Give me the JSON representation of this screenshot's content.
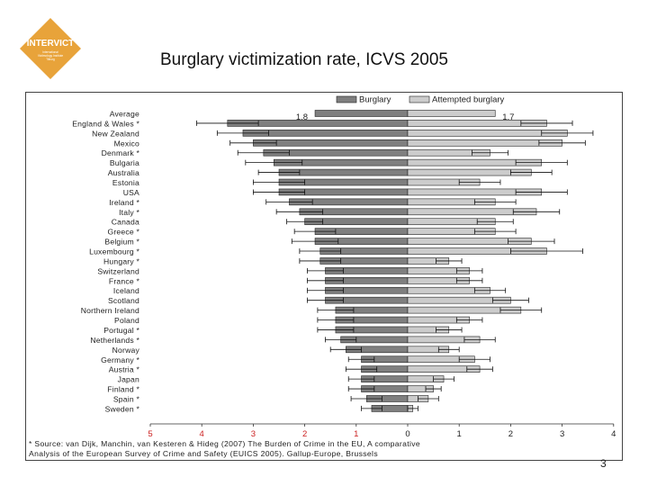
{
  "slide": {
    "title": "Burglary victimization rate, ICVS 2005",
    "page_number": "3",
    "logo_text": "INTERVICT",
    "logo_subtext": [
      "International",
      "Victimology Institute",
      "Tilburg"
    ]
  },
  "colors": {
    "logo_bg": "#e8a33a",
    "burglary_bar": "#7f7f7f",
    "attempted_bar": "#cccccc",
    "axis_red": "#cc2222",
    "frame": "#444444"
  },
  "chart_data": {
    "type": "bar",
    "orientation": "horizontal-diverging",
    "legend": [
      "Burglary",
      "Attempted burglary"
    ],
    "legend_position": "top-right",
    "categories": [
      "Average",
      "England & Wales *",
      "New Zealand",
      "Mexico",
      "Denmark *",
      "Bulgaria",
      "Australia",
      "Estonia",
      "USA",
      "Ireland *",
      "Italy *",
      "Canada",
      "Greece *",
      "Belgium *",
      "Luxembourg *",
      "Hungary *",
      "Switzerland",
      "France *",
      "Iceland",
      "Scotland",
      "Northern Ireland",
      "Poland",
      "Portugal *",
      "Netherlands *",
      "Norway",
      "Germany *",
      "Austria *",
      "Japan",
      "Finland *",
      "Spain *",
      "Sweden *"
    ],
    "series": [
      {
        "name": "Burglary",
        "values": [
          1.8,
          3.5,
          3.2,
          3.0,
          2.8,
          2.6,
          2.5,
          2.5,
          2.5,
          2.3,
          2.1,
          2.0,
          1.8,
          1.8,
          1.7,
          1.7,
          1.6,
          1.6,
          1.6,
          1.6,
          1.4,
          1.4,
          1.4,
          1.3,
          1.2,
          0.9,
          0.9,
          0.9,
          0.9,
          0.8,
          0.7
        ]
      },
      {
        "name": "Attempted burglary",
        "values": [
          1.7,
          2.7,
          3.1,
          3.0,
          1.6,
          2.6,
          2.4,
          1.4,
          2.6,
          1.7,
          2.5,
          1.7,
          1.7,
          2.4,
          2.7,
          0.8,
          1.2,
          1.2,
          1.6,
          2.0,
          2.2,
          1.2,
          0.8,
          1.4,
          0.8,
          1.3,
          1.4,
          0.7,
          0.5,
          0.4,
          0.1
        ]
      }
    ],
    "errors": {
      "burglary": [
        null,
        0.6,
        0.5,
        0.45,
        0.5,
        0.55,
        0.4,
        0.5,
        0.5,
        0.45,
        0.45,
        0.35,
        0.4,
        0.45,
        0.4,
        0.4,
        0.35,
        0.35,
        0.35,
        0.35,
        0.35,
        0.35,
        0.35,
        0.3,
        0.3,
        0.25,
        0.3,
        0.25,
        0.25,
        0.3,
        0.2
      ],
      "attempted": [
        null,
        0.5,
        0.5,
        0.45,
        0.35,
        0.5,
        0.4,
        0.4,
        0.5,
        0.4,
        0.45,
        0.35,
        0.4,
        0.45,
        0.7,
        0.25,
        0.25,
        0.25,
        0.3,
        0.35,
        0.4,
        0.25,
        0.25,
        0.3,
        0.2,
        0.3,
        0.25,
        0.2,
        0.15,
        0.2,
        0.1
      ]
    },
    "average_labels": [
      "1.8",
      "1.7"
    ],
    "x_ticks": [
      "5",
      "4",
      "3",
      "2",
      "1",
      "0",
      "1",
      "2",
      "3",
      "4"
    ],
    "xlim": [
      -5,
      4
    ],
    "annotation": "* Source: van Dijk, Manchin, van Kesteren & Hideg (2007) The Burden of Crime in the EU, A comparative Analysis of the European Survey of Crime and Safety (EUICS 2005). Gallup-Europe, Brussels",
    "annotation_lines": [
      "* Source: van Dijk, Manchin, van Kesteren & Hideg (2007) The Burden of Crime in the EU, A comparative",
      "Analysis of the European Survey of Crime and Safety (EUICS 2005). Gallup-Europe, Brussels"
    ]
  }
}
